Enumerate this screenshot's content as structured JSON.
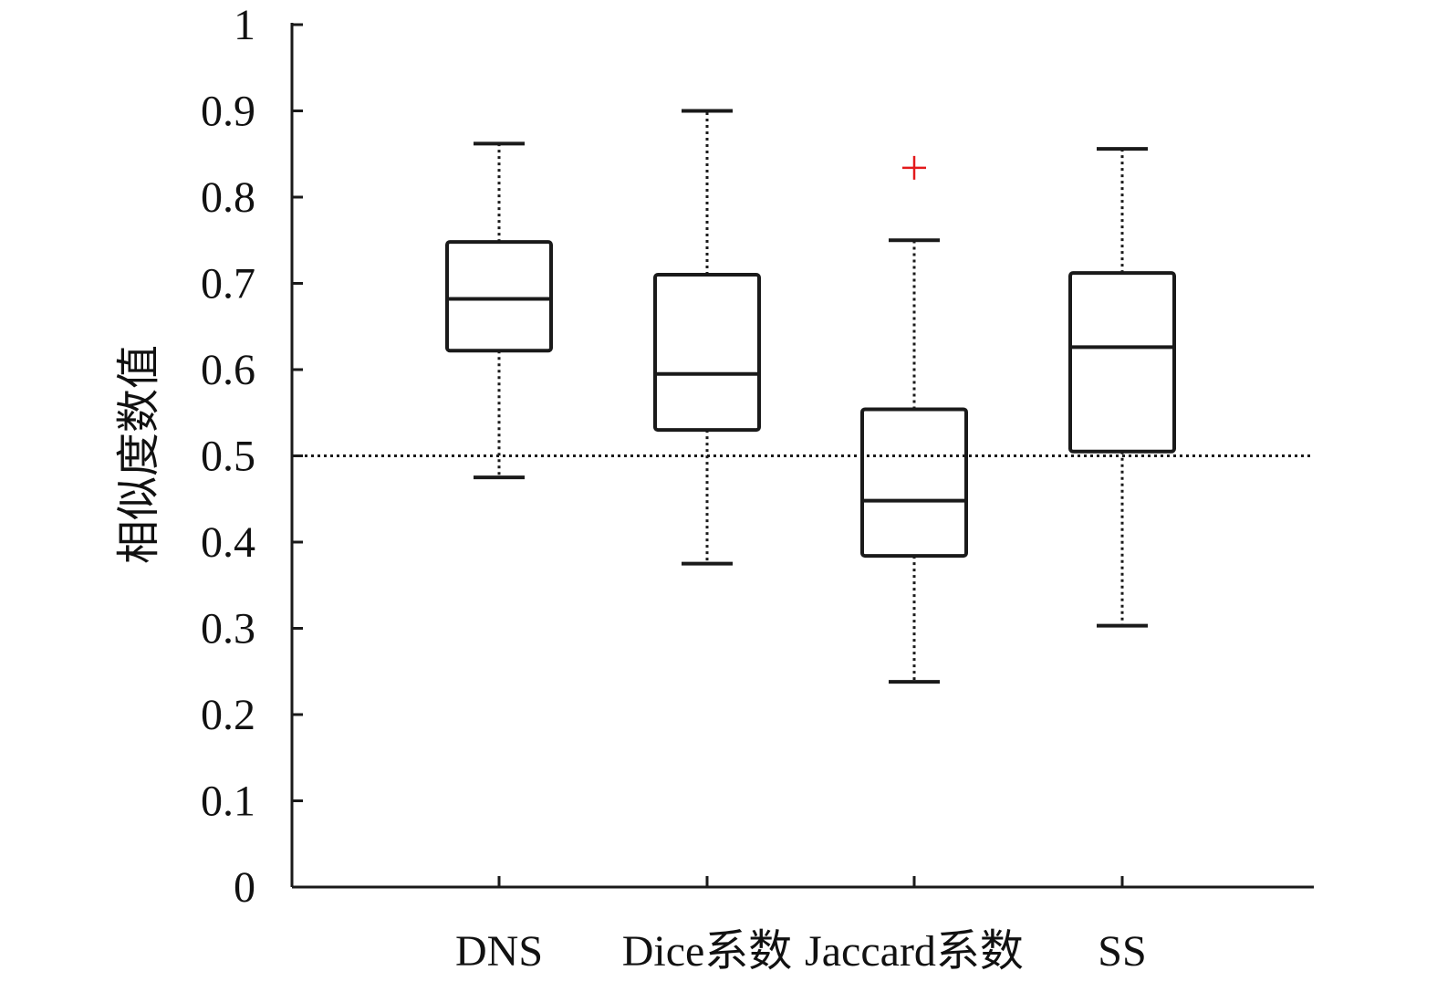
{
  "chart_data": {
    "type": "box",
    "ylabel": "相似度数值",
    "xlabel": "",
    "title": "",
    "ylim": [
      0,
      1
    ],
    "y_ticks": [
      0,
      0.1,
      0.2,
      0.3,
      0.4,
      0.5,
      0.6,
      0.7,
      0.8,
      0.9,
      1
    ],
    "y_tick_labels": [
      "0",
      "0.1",
      "0.2",
      "0.3",
      "0.4",
      "0.5",
      "0.6",
      "0.7",
      "0.8",
      "0.9",
      "1"
    ],
    "categories": [
      "DNS",
      "Dice系数",
      "Jaccard系数",
      "SS"
    ],
    "boxes": [
      {
        "category": "DNS",
        "whisker_low": 0.475,
        "q1": 0.622,
        "median": 0.682,
        "q3": 0.748,
        "whisker_high": 0.862,
        "outliers": []
      },
      {
        "category": "Dice系数",
        "whisker_low": 0.375,
        "q1": 0.53,
        "median": 0.595,
        "q3": 0.71,
        "whisker_high": 0.9,
        "outliers": []
      },
      {
        "category": "Jaccard系数",
        "whisker_low": 0.238,
        "q1": 0.384,
        "median": 0.448,
        "q3": 0.554,
        "whisker_high": 0.75,
        "outliers": [
          0.834
        ]
      },
      {
        "category": "SS",
        "whisker_low": 0.303,
        "q1": 0.505,
        "median": 0.626,
        "q3": 0.712,
        "whisker_high": 0.856,
        "outliers": []
      }
    ],
    "reference_line": 0.5,
    "grid": false,
    "colors": {
      "box": "#1a1a1a",
      "whisker": "#1a1a1a",
      "outlier": "#e31a1c",
      "reference_line": "#1a1a1a"
    }
  }
}
